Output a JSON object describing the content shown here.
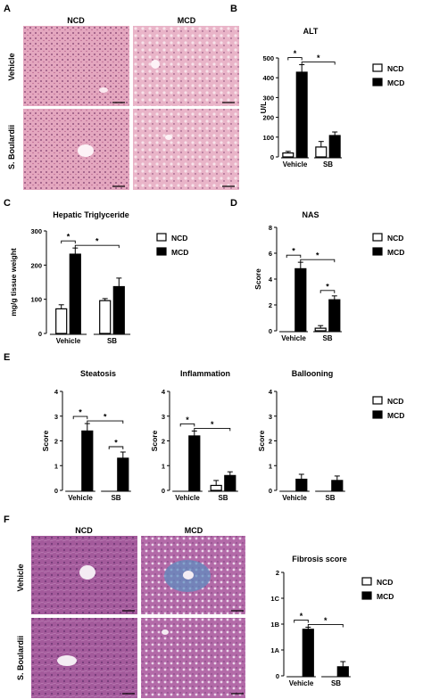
{
  "panels": {
    "A": {
      "letter": "A",
      "col_headers": [
        "NCD",
        "MCD"
      ],
      "row_labels": [
        "Vehicle",
        "S. Boulardii"
      ]
    },
    "F": {
      "letter": "F",
      "col_headers": [
        "NCD",
        "MCD"
      ],
      "row_labels": [
        "Vehicle",
        "S. Boulardii"
      ]
    },
    "B": {
      "letter": "B"
    },
    "C": {
      "letter": "C"
    },
    "D": {
      "letter": "D"
    },
    "E": {
      "letter": "E"
    }
  },
  "colors": {
    "he_stain": "#d48aa8",
    "trichrome": "#9a4f92",
    "fibrosis_blue": "#5a8fc0",
    "bar_fill_mcd": "#000000",
    "bar_fill_ncd": "#ffffff"
  },
  "chart_data": [
    {
      "id": "B",
      "type": "bar",
      "title": "ALT",
      "ylabel": "U/L",
      "xlabel": "",
      "groups": [
        "Vehicle",
        "SB"
      ],
      "ylim": [
        0,
        500
      ],
      "yticks": [
        "0",
        "100",
        "200",
        "300",
        "400",
        "500"
      ],
      "series": [
        {
          "name": "NCD",
          "values": [
            20,
            50
          ],
          "errors": [
            8,
            28
          ]
        },
        {
          "name": "MCD",
          "values": [
            428,
            108
          ],
          "errors": [
            38,
            18
          ]
        }
      ],
      "significance": [
        "*",
        "*"
      ]
    },
    {
      "id": "C",
      "type": "bar",
      "title": "Hepatic Triglyceride",
      "ylabel": "mg/g tissue weight",
      "xlabel": "",
      "groups": [
        "Vehicle",
        "SB"
      ],
      "ylim": [
        0,
        300
      ],
      "yticks": [
        "0",
        "100",
        "200",
        "300"
      ],
      "series": [
        {
          "name": "NCD",
          "values": [
            72,
            96
          ],
          "errors": [
            12,
            6
          ]
        },
        {
          "name": "MCD",
          "values": [
            232,
            137
          ],
          "errors": [
            18,
            25
          ]
        }
      ],
      "significance": [
        "*",
        "*"
      ]
    },
    {
      "id": "D",
      "type": "bar",
      "title": "NAS",
      "ylabel": "Score",
      "xlabel": "",
      "groups": [
        "Vehicle",
        "SB"
      ],
      "ylim": [
        0,
        8
      ],
      "yticks": [
        "0",
        "2",
        "4",
        "6",
        "8"
      ],
      "series": [
        {
          "name": "NCD",
          "values": [
            0,
            0.2
          ],
          "errors": [
            0,
            0.2
          ]
        },
        {
          "name": "MCD",
          "values": [
            4.8,
            2.4
          ],
          "errors": [
            0.5,
            0.3
          ]
        }
      ],
      "significance": [
        "*",
        "*",
        "*"
      ]
    },
    {
      "id": "E1",
      "type": "bar",
      "title": "Steatosis",
      "ylabel": "Score",
      "xlabel": "",
      "groups": [
        "Vehicle",
        "SB"
      ],
      "ylim": [
        0,
        4
      ],
      "yticks": [
        "0",
        "1",
        "2",
        "3",
        "4"
      ],
      "series": [
        {
          "name": "NCD",
          "values": [
            0,
            0
          ],
          "errors": [
            0,
            0
          ]
        },
        {
          "name": "MCD",
          "values": [
            2.4,
            1.3
          ],
          "errors": [
            0.3,
            0.25
          ]
        }
      ],
      "significance": [
        "*",
        "*",
        "*"
      ]
    },
    {
      "id": "E2",
      "type": "bar",
      "title": "Inflammation",
      "ylabel": "Score",
      "xlabel": "",
      "groups": [
        "Vehicle",
        "SB"
      ],
      "ylim": [
        0,
        4
      ],
      "yticks": [
        "0",
        "1",
        "2",
        "3",
        "4"
      ],
      "series": [
        {
          "name": "NCD",
          "values": [
            0,
            0.2
          ],
          "errors": [
            0,
            0.2
          ]
        },
        {
          "name": "MCD",
          "values": [
            2.2,
            0.6
          ],
          "errors": [
            0.2,
            0.15
          ]
        }
      ],
      "significance": [
        "*",
        "*"
      ]
    },
    {
      "id": "E3",
      "type": "bar",
      "title": "Ballooning",
      "ylabel": "Score",
      "xlabel": "",
      "groups": [
        "Vehicle",
        "SB"
      ],
      "ylim": [
        0,
        4
      ],
      "yticks": [
        "0",
        "1",
        "2",
        "3",
        "4"
      ],
      "series": [
        {
          "name": "NCD",
          "values": [
            0,
            0
          ],
          "errors": [
            0,
            0
          ]
        },
        {
          "name": "MCD",
          "values": [
            0.45,
            0.4
          ],
          "errors": [
            0.2,
            0.18
          ]
        }
      ],
      "significance": []
    },
    {
      "id": "F",
      "type": "bar",
      "title": "Fibrosis score",
      "ylabel": "",
      "xlabel": "",
      "groups": [
        "Vehicle",
        "SB"
      ],
      "ylim": [
        0,
        4
      ],
      "yticks": [
        "0",
        "1A",
        "1B",
        "1C",
        "2"
      ],
      "series": [
        {
          "name": "NCD",
          "values": [
            0,
            0
          ],
          "errors": [
            0,
            0
          ]
        },
        {
          "name": "MCD",
          "values": [
            1.8,
            0.35
          ],
          "errors": [
            0.08,
            0.2
          ]
        }
      ],
      "significance": [
        "*",
        "*"
      ]
    }
  ]
}
